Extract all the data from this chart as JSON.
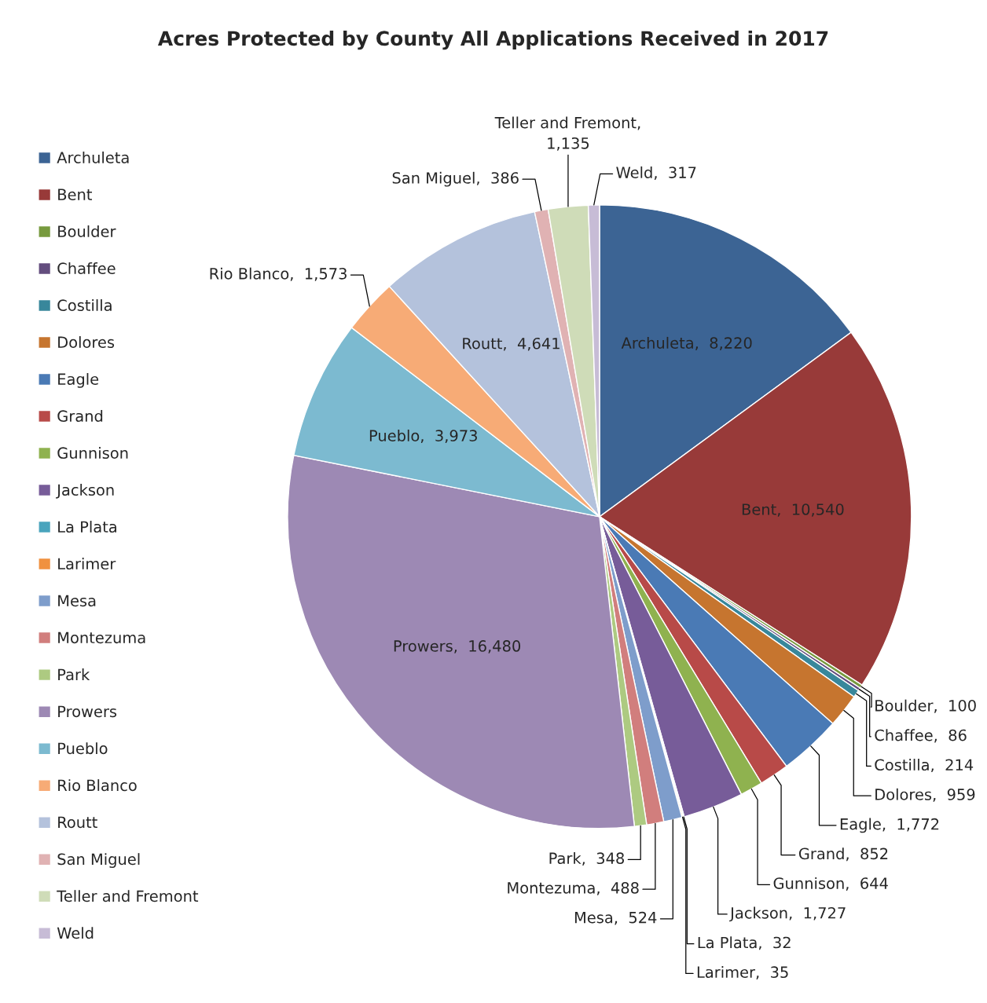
{
  "chart_data": {
    "type": "pie",
    "title": "Acres Protected by County All Applications Received in 2017",
    "categories": [
      "Archuleta",
      "Bent",
      "Boulder",
      "Chaffee",
      "Costilla",
      "Dolores",
      "Eagle",
      "Grand",
      "Gunnison",
      "Jackson",
      "La Plata",
      "Larimer",
      "Mesa",
      "Montezuma",
      "Park",
      "Prowers",
      "Pueblo",
      "Rio Blanco",
      "Routt",
      "San Miguel",
      "Teller and Fremont",
      "Weld"
    ],
    "values": [
      8220,
      10540,
      100,
      86,
      214,
      959,
      1772,
      852,
      644,
      1727,
      32,
      35,
      524,
      488,
      348,
      16480,
      3973,
      1573,
      4641,
      386,
      1135,
      317
    ],
    "value_labels": [
      "Archuleta,  8,220",
      "Bent,  10,540",
      "Boulder,  100",
      "Chaffee,  86",
      "Costilla,  214",
      "Dolores,  959",
      "Eagle,  1,772",
      "Grand,  852",
      "Gunnison,  644",
      "Jackson,  1,727",
      "La Plata,  32",
      "Larimer,  35",
      "Mesa,  524",
      "Montezuma,  488",
      "Park,  348",
      "Prowers,  16,480",
      "Pueblo,  3,973",
      "Rio Blanco,  1,573",
      "Routt,  4,641",
      "San Miguel,  386",
      "Teller and Fremont,  1,135",
      "Weld,  317"
    ],
    "colors": [
      "#3c6494",
      "#983a39",
      "#779a3e",
      "#634d7e",
      "#38879b",
      "#c6752f",
      "#4a7ab5",
      "#b84a48",
      "#8fb24f",
      "#775c99",
      "#4aa4bd",
      "#f0913f",
      "#7e9dcb",
      "#d17e7d",
      "#adca81",
      "#9d89b4",
      "#7cbad0",
      "#f7ab76",
      "#b4c2dc",
      "#e0b2b3",
      "#cfdcb8",
      "#c7bcd6"
    ],
    "legend": "left"
  }
}
